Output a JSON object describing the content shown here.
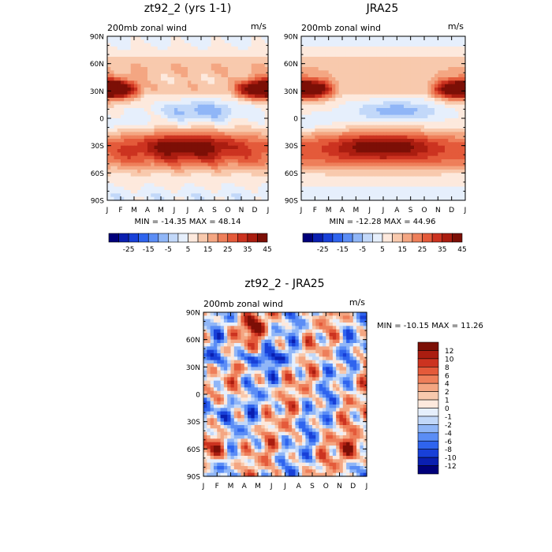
{
  "chart_data": [
    {
      "type": "heatmap",
      "title": "zt92_2 (yrs 1-1)",
      "subtitle": "200mb zonal wind",
      "units": "m/s",
      "x_tick_labels": [
        "J",
        "F",
        "M",
        "A",
        "M",
        "J",
        "J",
        "A",
        "S",
        "O",
        "N",
        "D",
        "J"
      ],
      "y_tick_labels": [
        "90N",
        "60N",
        "30N",
        "0",
        "30S",
        "60S",
        "90S"
      ],
      "xlim": [
        0,
        12
      ],
      "ylim": [
        -90,
        90
      ],
      "stats": "MIN = -14.35 MAX =  48.14",
      "legend": "bottom-horizontal",
      "colorbar_labels": [
        "-25",
        "-15",
        "-5",
        "5",
        "15",
        "25",
        "35",
        "45"
      ],
      "jets": [
        {
          "lat": 32,
          "month": 0.3,
          "value": 48
        },
        {
          "lat": 32,
          "month": 11.7,
          "value": 44
        },
        {
          "lat": -28,
          "month": 6.5,
          "value": 40
        },
        {
          "lat": 8,
          "month": 7,
          "value": -14
        }
      ]
    },
    {
      "type": "heatmap",
      "title": "JRA25",
      "subtitle": "200mb zonal wind",
      "units": "m/s",
      "x_tick_labels": [
        "J",
        "F",
        "M",
        "A",
        "M",
        "J",
        "J",
        "A",
        "S",
        "O",
        "N",
        "D",
        "J"
      ],
      "y_tick_labels": [
        "90N",
        "60N",
        "30N",
        "0",
        "30S",
        "60S",
        "90S"
      ],
      "xlim": [
        0,
        12
      ],
      "ylim": [
        -90,
        90
      ],
      "stats": "MIN = -12.28 MAX =  44.96",
      "legend": "bottom-horizontal",
      "colorbar_labels": [
        "-25",
        "-15",
        "-5",
        "5",
        "15",
        "25",
        "35",
        "45"
      ],
      "jets": [
        {
          "lat": 32,
          "month": 0.3,
          "value": 45
        },
        {
          "lat": 32,
          "month": 11.7,
          "value": 42
        },
        {
          "lat": -30,
          "month": 6.5,
          "value": 38
        },
        {
          "lat": 8,
          "month": 7,
          "value": -12
        }
      ]
    },
    {
      "type": "heatmap",
      "title": "zt92_2 - JRA25",
      "subtitle": "200mb zonal wind",
      "units": "m/s",
      "x_tick_labels": [
        "J",
        "F",
        "M",
        "A",
        "M",
        "J",
        "J",
        "A",
        "S",
        "O",
        "N",
        "D",
        "J"
      ],
      "y_tick_labels": [
        "90N",
        "60N",
        "30N",
        "0",
        "30S",
        "60S",
        "90S"
      ],
      "xlim": [
        0,
        12
      ],
      "ylim": [
        -90,
        90
      ],
      "stats": "MIN = -10.15 MAX =  11.26",
      "legend": "right-vertical",
      "colorbar_labels": [
        "12",
        "10",
        "8",
        "6",
        "4",
        "2",
        "1",
        "0",
        "-1",
        "-2",
        "-4",
        "-6",
        "-8",
        "-10",
        "-12"
      ]
    }
  ],
  "colors": {
    "full_scale": [
      "#00007a",
      "#0a1fb0",
      "#1840d8",
      "#2f64ee",
      "#5b8df5",
      "#90b6f7",
      "#c2d8f9",
      "#e6effc",
      "#fde9dd",
      "#f8c9ad",
      "#f4a682",
      "#ee7f5a",
      "#e45a3a",
      "#cc3320",
      "#aa1d10",
      "#7c0f06"
    ],
    "diff_scale": [
      "#7c0f06",
      "#aa1d10",
      "#cc3320",
      "#e45a3a",
      "#ee7f5a",
      "#f4a682",
      "#f8c9ad",
      "#fde9dd",
      "#e6effc",
      "#c2d8f9",
      "#90b6f7",
      "#5b8df5",
      "#2f64ee",
      "#1840d8",
      "#0a1fb0",
      "#00007a"
    ]
  }
}
